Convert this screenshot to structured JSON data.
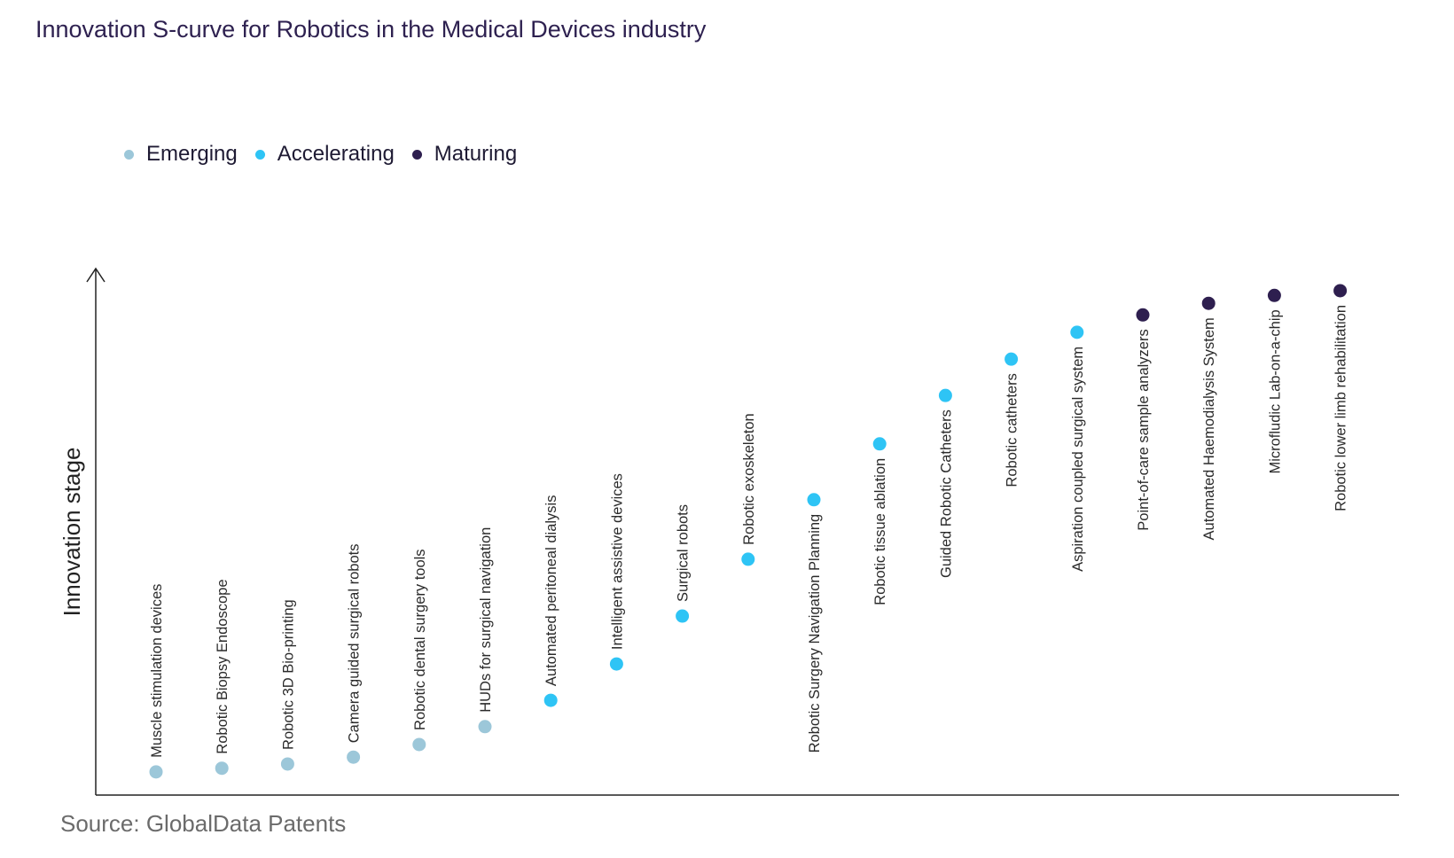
{
  "title": "Innovation S-curve for Robotics in the Medical Devices industry",
  "legend": [
    {
      "label": "Emerging",
      "color": "#9cc7d9"
    },
    {
      "label": "Accelerating",
      "color": "#2ec4f5"
    },
    {
      "label": "Maturing",
      "color": "#2e1f4f"
    }
  ],
  "source": "Source: GlobalData Patents",
  "chart_data": {
    "type": "scatter",
    "title": "Innovation S-curve for Robotics in the Medical Devices industry",
    "ylabel": "Innovation stage",
    "xlabel": "",
    "ylim": [
      0,
      100
    ],
    "grid": false,
    "legend_position": "top-left",
    "points": [
      {
        "label": "Muscle stimulation devices",
        "stage": "Emerging",
        "y": 4.4
      },
      {
        "label": "Robotic Biopsy Endoscope",
        "stage": "Emerging",
        "y": 5.1
      },
      {
        "label": "Robotic 3D Bio-printing",
        "stage": "Emerging",
        "y": 5.9
      },
      {
        "label": "Camera guided surgical robots",
        "stage": "Emerging",
        "y": 7.2
      },
      {
        "label": "Robotic dental surgery tools",
        "stage": "Emerging",
        "y": 9.6
      },
      {
        "label": "HUDs for surgical navigation",
        "stage": "Emerging",
        "y": 13.0
      },
      {
        "label": "Automated peritoneal dialysis",
        "stage": "Accelerating",
        "y": 18.0
      },
      {
        "label": "Intelligent assistive devices",
        "stage": "Accelerating",
        "y": 24.9
      },
      {
        "label": "Surgical robots",
        "stage": "Accelerating",
        "y": 34.0
      },
      {
        "label": "Robotic exoskeleton",
        "stage": "Accelerating",
        "y": 44.8
      },
      {
        "label": "Robotic Surgery Navigation Planning",
        "stage": "Accelerating",
        "y": 56.1
      },
      {
        "label": "Robotic tissue ablation",
        "stage": "Accelerating",
        "y": 66.7
      },
      {
        "label": "Guided Robotic Catheters",
        "stage": "Accelerating",
        "y": 75.9
      },
      {
        "label": "Robotic catheters",
        "stage": "Accelerating",
        "y": 82.8
      },
      {
        "label": "Aspiration coupled surgical system",
        "stage": "Accelerating",
        "y": 87.9
      },
      {
        "label": "Point-of-care sample analyzers",
        "stage": "Maturing",
        "y": 91.2
      },
      {
        "label": "Automated Haemodialysis System",
        "stage": "Maturing",
        "y": 93.4
      },
      {
        "label": "Microfludic Lab-on-a-chip",
        "stage": "Maturing",
        "y": 94.9
      },
      {
        "label": "Robotic lower limb rehabilitation",
        "stage": "Maturing",
        "y": 95.8
      }
    ]
  }
}
